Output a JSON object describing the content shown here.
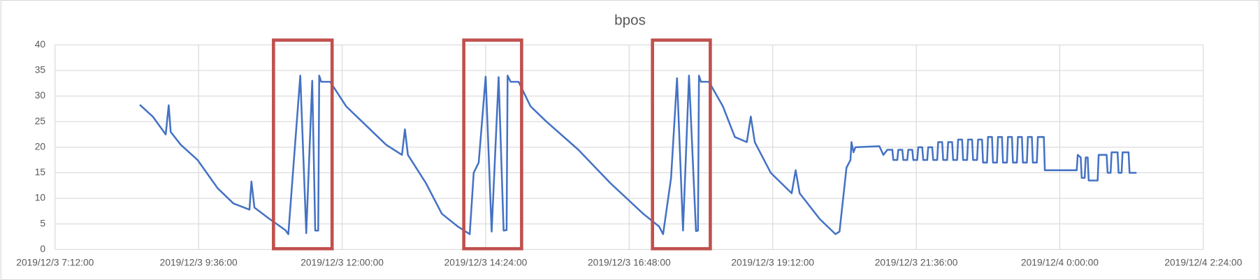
{
  "chart_data": {
    "type": "line",
    "title": "bpos",
    "color": "#4472c4",
    "grid": true,
    "xlim": [
      "2019/12/3 7:12:00",
      "2019/12/4 2:24:00"
    ],
    "xticks": [
      "2019/12/3 7:12:00",
      "2019/12/3 9:36:00",
      "2019/12/3 12:00:00",
      "2019/12/3 14:24:00",
      "2019/12/3 16:48:00",
      "2019/12/3 19:12:00",
      "2019/12/3 21:36:00",
      "2019/12/4 0:00:00",
      "2019/12/4 2:24:00"
    ],
    "ylim": [
      0,
      40
    ],
    "yticks": [
      0,
      5,
      10,
      15,
      20,
      25,
      30,
      35,
      40
    ],
    "x": [
      "2019/12/3 8:37:00",
      "2019/12/3 8:50:00",
      "2019/12/3 9:03:00",
      "2019/12/3 9:06:00",
      "2019/12/3 9:08:00",
      "2019/12/3 9:18:00",
      "2019/12/3 9:35:00",
      "2019/12/3 9:55:00",
      "2019/12/3 10:11:00",
      "2019/12/3 10:27:00",
      "2019/12/3 10:29:00",
      "2019/12/3 10:32:00",
      "2019/12/3 10:47:00",
      "2019/12/3 11:03:00",
      "2019/12/3 11:06:00",
      "2019/12/3 11:18:00",
      "2019/12/3 11:24:00",
      "2019/12/3 11:30:00",
      "2019/12/3 11:33:00",
      "2019/12/3 11:36:00",
      "2019/12/3 11:37:00",
      "2019/12/3 11:39:00",
      "2019/12/3 11:48:00",
      "2019/12/3 12:04:00",
      "2019/12/3 12:20:00",
      "2019/12/3 12:44:00",
      "2019/12/3 13:00:00",
      "2019/12/3 13:03:00",
      "2019/12/3 13:06:00",
      "2019/12/3 13:24:00",
      "2019/12/3 13:40:00",
      "2019/12/3 13:56:00",
      "2019/12/3 14:08:00",
      "2019/12/3 14:12:00",
      "2019/12/3 14:17:00",
      "2019/12/3 14:24:00",
      "2019/12/3 14:30:00",
      "2019/12/3 14:37:00",
      "2019/12/3 14:42:00",
      "2019/12/3 14:45:00",
      "2019/12/3 14:46:00",
      "2019/12/3 14:49:00",
      "2019/12/3 14:57:00",
      "2019/12/3 15:09:00",
      "2019/12/3 15:25:00",
      "2019/12/3 15:57:00",
      "2019/12/3 16:29:00",
      "2019/12/3 17:02:00",
      "2019/12/3 17:18:00",
      "2019/12/3 17:22:00",
      "2019/12/3 17:30:00",
      "2019/12/3 17:36:00",
      "2019/12/3 17:42:00",
      "2019/12/3 17:48:00",
      "2019/12/3 17:55:00",
      "2019/12/3 17:57:00",
      "2019/12/3 17:58:00",
      "2019/12/3 18:00:00",
      "2019/12/3 18:08:00",
      "2019/12/3 18:22:00",
      "2019/12/3 18:34:00",
      "2019/12/3 18:46:00",
      "2019/12/3 18:50:00",
      "2019/12/3 18:54:00",
      "2019/12/3 19:10:00",
      "2019/12/3 19:31:00",
      "2019/12/3 19:35:00",
      "2019/12/3 19:39:00",
      "2019/12/3 19:59:00",
      "2019/12/3 20:15:00",
      "2019/12/3 20:19:00",
      "2019/12/3 20:26:00",
      "2019/12/3 20:30:00",
      "2019/12/3 20:31:00",
      "2019/12/3 20:33:00",
      "2019/12/3 20:35:00",
      "2019/12/3 20:59:00",
      "2019/12/3 21:03:00",
      "2019/12/3 21:07:00",
      "2019/12/3 21:12:00",
      "2019/12/3 21:13:00",
      "2019/12/3 21:17:00",
      "2019/12/3 21:18:00",
      "2019/12/3 21:22:00",
      "2019/12/3 21:23:00",
      "2019/12/3 21:27:00",
      "2019/12/3 21:28:00",
      "2019/12/3 21:32:00",
      "2019/12/3 21:33:00",
      "2019/12/3 21:37:00",
      "2019/12/3 21:38:00",
      "2019/12/3 21:42:00",
      "2019/12/3 21:43:00",
      "2019/12/3 21:47:00",
      "2019/12/3 21:48:00",
      "2019/12/3 21:52:00",
      "2019/12/3 21:53:00",
      "2019/12/3 21:57:00",
      "2019/12/3 21:58:00",
      "2019/12/3 22:02:00",
      "2019/12/3 22:03:00",
      "2019/12/3 22:07:00",
      "2019/12/3 22:08:00",
      "2019/12/3 22:12:00",
      "2019/12/3 22:13:00",
      "2019/12/3 22:17:00",
      "2019/12/3 22:18:00",
      "2019/12/3 22:22:00",
      "2019/12/3 22:23:00",
      "2019/12/3 22:27:00",
      "2019/12/3 22:28:00",
      "2019/12/3 22:32:00",
      "2019/12/3 22:33:00",
      "2019/12/3 22:37:00",
      "2019/12/3 22:38:00",
      "2019/12/3 22:42:00",
      "2019/12/3 22:43:00",
      "2019/12/3 22:47:00",
      "2019/12/3 22:48:00",
      "2019/12/3 22:52:00",
      "2019/12/3 22:53:00",
      "2019/12/3 22:57:00",
      "2019/12/3 22:58:00",
      "2019/12/3 23:02:00",
      "2019/12/3 23:03:00",
      "2019/12/3 23:07:00",
      "2019/12/3 23:08:00",
      "2019/12/3 23:12:00",
      "2019/12/3 23:13:00",
      "2019/12/3 23:17:00",
      "2019/12/3 23:18:00",
      "2019/12/3 23:22:00",
      "2019/12/3 23:23:00",
      "2019/12/3 23:27:00",
      "2019/12/3 23:28:00",
      "2019/12/3 23:32:00",
      "2019/12/3 23:33:00",
      "2019/12/3 23:37:00",
      "2019/12/3 23:38:00",
      "2019/12/3 23:44:00",
      "2019/12/3 23:45:00",
      "2019/12/4 0:17:00",
      "2019/12/4 0:18:00",
      "2019/12/4 0:21:00",
      "2019/12/4 0:22:00",
      "2019/12/4 0:25:00",
      "2019/12/4 0:26:00",
      "2019/12/4 0:28:00",
      "2019/12/4 0:29:00",
      "2019/12/4 0:38:00",
      "2019/12/4 0:39:00",
      "2019/12/4 0:47:00",
      "2019/12/4 0:48:00",
      "2019/12/4 0:51:00",
      "2019/12/4 0:52:00",
      "2019/12/4 0:58:00",
      "2019/12/4 0:59:00",
      "2019/12/4 1:02:00",
      "2019/12/4 1:03:00",
      "2019/12/4 1:09:00",
      "2019/12/4 1:10:00",
      "2019/12/4 1:17:00"
    ],
    "values": [
      28.3,
      26,
      22.5,
      28.2,
      23,
      20.5,
      17.5,
      12,
      9,
      7.8,
      13.3,
      8.2,
      6,
      3.8,
      3,
      34,
      3.2,
      33,
      3.7,
      3.7,
      34,
      32.8,
      32.8,
      28,
      25,
      20.5,
      18.5,
      23.5,
      18.5,
      13,
      7,
      4.5,
      3,
      15,
      17,
      33.8,
      3.5,
      33.7,
      3.7,
      3.8,
      34,
      32.8,
      32.8,
      28,
      25,
      19.5,
      13,
      7,
      4.5,
      3,
      14,
      33.5,
      3.7,
      34,
      3.6,
      3.7,
      34,
      32.8,
      32.8,
      28,
      22,
      21,
      26,
      21,
      15,
      11,
      15.5,
      11,
      6,
      3,
      3.5,
      16,
      17.5,
      21,
      19,
      20,
      20.2,
      18.5,
      19.5,
      19.5,
      17.5,
      17.5,
      19.5,
      19.5,
      17.5,
      17.5,
      19.5,
      19.5,
      17.5,
      17.5,
      20,
      20,
      17.5,
      17.5,
      20,
      20,
      17.5,
      17.5,
      21,
      21,
      17.5,
      17.5,
      21,
      21,
      17.5,
      17.5,
      21.5,
      21.5,
      17.5,
      17.5,
      21.5,
      21.5,
      17.5,
      17.5,
      21.5,
      21.5,
      17,
      17,
      22,
      22,
      17,
      17,
      22,
      22,
      17,
      17,
      22,
      22,
      17,
      17,
      22,
      22,
      17,
      17,
      22,
      22,
      17,
      17,
      22,
      22,
      15.5,
      15.5,
      18.5,
      18,
      14,
      14,
      18,
      18,
      13.5,
      13.5,
      18.5,
      18.5,
      15,
      15,
      19,
      19,
      15,
      15,
      19,
      19,
      15,
      15
    ]
  }
}
